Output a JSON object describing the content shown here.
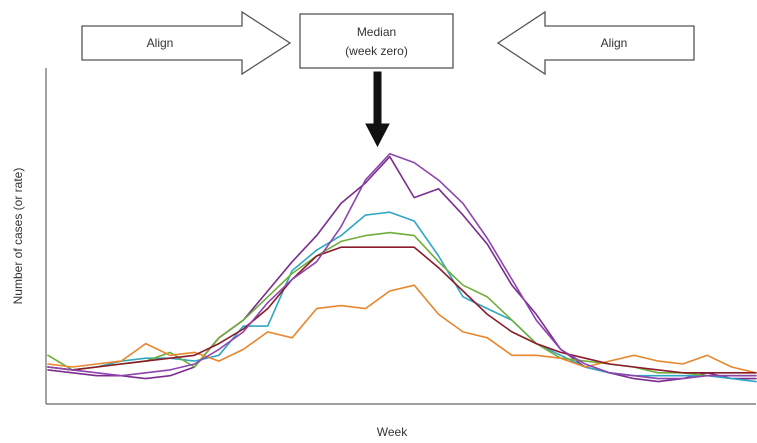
{
  "labels": {
    "left_arrow": "Align",
    "right_arrow": "Align",
    "median_line1": "Median",
    "median_line2": "(week zero)"
  },
  "chart_data": {
    "type": "line",
    "title": "",
    "xlabel": "Week",
    "ylabel": "Number of cases (or rate)",
    "xlim": [
      0,
      29
    ],
    "ylim": [
      0,
      100
    ],
    "grid": false,
    "legend": "none",
    "x": [
      0,
      1,
      2,
      3,
      4,
      5,
      6,
      7,
      8,
      9,
      10,
      11,
      12,
      13,
      14,
      15,
      16,
      17,
      18,
      19,
      20,
      21,
      22,
      23,
      24,
      25,
      26,
      27,
      28,
      29
    ],
    "series": [
      {
        "color": "#7B2D8E",
        "values": [
          11,
          10,
          9,
          9,
          8,
          9,
          12,
          22,
          28,
          38,
          48,
          57,
          68,
          75,
          84,
          70,
          73,
          64,
          54,
          40,
          30,
          18,
          12,
          10,
          8,
          7,
          8,
          10,
          8,
          8
        ]
      },
      {
        "color": "#2FA7C4",
        "values": [
          12,
          11,
          12,
          14,
          15,
          15,
          14,
          16,
          26,
          26,
          45,
          52,
          57,
          64,
          65,
          62,
          50,
          36,
          32,
          28,
          20,
          16,
          12,
          10,
          9,
          9,
          9,
          9,
          8,
          7
        ]
      },
      {
        "color": "#6FAE3A",
        "values": [
          16,
          11,
          12,
          13,
          14,
          17,
          12,
          22,
          28,
          36,
          44,
          50,
          55,
          57,
          58,
          57,
          48,
          40,
          36,
          28,
          20,
          15,
          14,
          13,
          12,
          10,
          10,
          9,
          9,
          9
        ]
      },
      {
        "color": "#E8872E",
        "values": [
          13,
          12,
          13,
          14,
          20,
          16,
          17,
          14,
          18,
          24,
          22,
          32,
          33,
          32,
          38,
          40,
          30,
          24,
          22,
          16,
          16,
          15,
          12,
          14,
          16,
          14,
          13,
          16,
          12,
          10
        ]
      },
      {
        "color": "#8B1A2B",
        "values": [
          12,
          11,
          12,
          13,
          14,
          15,
          16,
          20,
          25,
          32,
          42,
          50,
          53,
          53,
          53,
          53,
          46,
          38,
          30,
          24,
          20,
          17,
          15,
          13,
          12,
          11,
          10,
          10,
          10,
          10
        ]
      },
      {
        "color": "#8E44AD",
        "values": [
          12,
          11,
          10,
          9,
          10,
          11,
          13,
          18,
          24,
          34,
          42,
          48,
          60,
          76,
          85,
          82,
          76,
          68,
          56,
          42,
          28,
          18,
          13,
          10,
          9,
          8,
          8,
          9,
          9,
          9
        ]
      }
    ]
  }
}
